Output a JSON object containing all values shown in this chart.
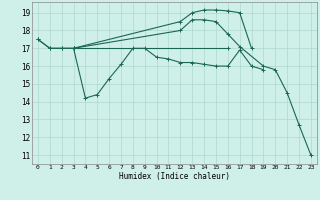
{
  "title": "",
  "xlabel": "Humidex (Indice chaleur)",
  "bg_color": "#cff0e8",
  "grid_color": "#b0d8cc",
  "line_color": "#1a6655",
  "xlim": [
    -0.5,
    23.5
  ],
  "ylim": [
    10.5,
    19.6
  ],
  "yticks": [
    11,
    12,
    13,
    14,
    15,
    16,
    17,
    18,
    19
  ],
  "xticks": [
    0,
    1,
    2,
    3,
    4,
    5,
    6,
    7,
    8,
    9,
    10,
    11,
    12,
    13,
    14,
    15,
    16,
    17,
    18,
    19,
    20,
    21,
    22,
    23
  ],
  "lines": [
    {
      "x": [
        0,
        1,
        2,
        3,
        4,
        5,
        6,
        7,
        8,
        9,
        10,
        11,
        12,
        13,
        14,
        15,
        16,
        17,
        18,
        19
      ],
      "y": [
        17.5,
        17.0,
        17.0,
        17.0,
        14.2,
        14.4,
        15.3,
        16.1,
        17.0,
        17.0,
        16.5,
        16.4,
        16.2,
        16.2,
        16.1,
        16.0,
        16.0,
        16.9,
        16.0,
        15.8
      ]
    },
    {
      "x": [
        0,
        1,
        2,
        3,
        12,
        13,
        14,
        15,
        16,
        17,
        18
      ],
      "y": [
        17.5,
        17.0,
        17.0,
        17.0,
        18.5,
        19.0,
        19.15,
        19.15,
        19.1,
        19.0,
        17.0
      ]
    },
    {
      "x": [
        3,
        16
      ],
      "y": [
        17.0,
        17.0
      ]
    },
    {
      "x": [
        3,
        12,
        13,
        14,
        15,
        16,
        17,
        19,
        20,
        21,
        22,
        23
      ],
      "y": [
        17.0,
        18.0,
        18.6,
        18.6,
        18.5,
        17.8,
        17.1,
        16.0,
        15.8,
        14.5,
        12.7,
        11.0
      ]
    }
  ]
}
